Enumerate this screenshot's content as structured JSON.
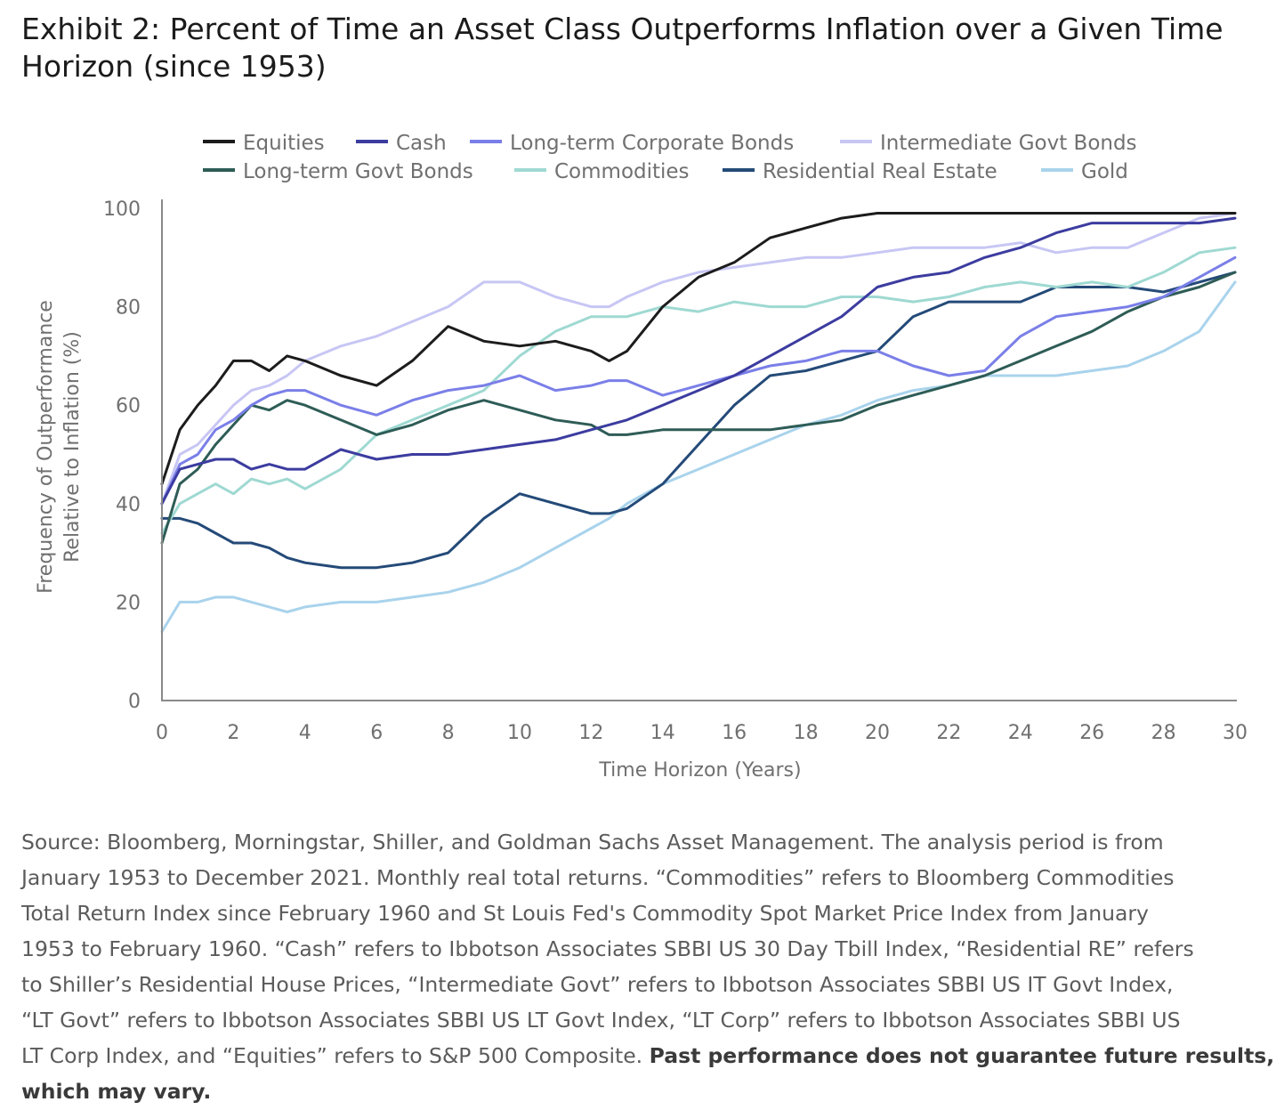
{
  "title": {
    "line1": "Exhibit 2: Percent of Time an Asset Class Outperforms Inflation over a Given Time",
    "line2": "Horizon (since 1953)"
  },
  "chart_data": {
    "type": "line",
    "xlabel": "Time Horizon (Years)",
    "ylabel_line1": "Frequency of Outperformance",
    "ylabel_line2": "Relative to Inflation (%)",
    "xlim": [
      0,
      30
    ],
    "ylim": [
      0,
      100
    ],
    "xticks": [
      0,
      2,
      4,
      6,
      8,
      10,
      12,
      14,
      16,
      18,
      20,
      22,
      24,
      26,
      28,
      30
    ],
    "yticks": [
      0,
      20,
      40,
      60,
      80,
      100
    ],
    "grid": false,
    "legend": "top",
    "x": [
      0,
      0.5,
      1,
      1.5,
      2,
      2.5,
      3,
      3.5,
      4,
      5,
      6,
      7,
      8,
      9,
      10,
      11,
      12,
      12.5,
      13,
      14,
      15,
      16,
      17,
      18,
      19,
      20,
      21,
      22,
      23,
      24,
      25,
      26,
      27,
      28,
      29,
      30
    ],
    "series": [
      {
        "name": "Equities",
        "color": "#1c1c1c",
        "values": [
          44,
          55,
          60,
          64,
          69,
          69,
          67,
          70,
          69,
          66,
          64,
          69,
          76,
          73,
          72,
          73,
          71,
          69,
          71,
          80,
          86,
          89,
          94,
          96,
          98,
          99,
          99,
          99,
          99,
          99,
          99,
          99,
          99,
          99,
          99,
          99
        ]
      },
      {
        "name": "Cash",
        "color": "#3c3ca0",
        "values": [
          40,
          47,
          48,
          49,
          49,
          47,
          48,
          47,
          47,
          51,
          49,
          50,
          50,
          51,
          52,
          53,
          55,
          56,
          57,
          60,
          63,
          66,
          70,
          74,
          78,
          84,
          86,
          87,
          90,
          92,
          95,
          97,
          97,
          97,
          97,
          98
        ]
      },
      {
        "name": "Long-term Corporate Bonds",
        "color": "#7a7fe8",
        "values": [
          40,
          48,
          50,
          55,
          57,
          60,
          62,
          63,
          63,
          60,
          58,
          61,
          63,
          64,
          66,
          63,
          64,
          65,
          65,
          62,
          64,
          66,
          68,
          69,
          71,
          71,
          68,
          66,
          67,
          74,
          78,
          79,
          80,
          82,
          86,
          90
        ]
      },
      {
        "name": "Intermediate Govt Bonds",
        "color": "#c7c6f4",
        "values": [
          40,
          50,
          52,
          56,
          60,
          63,
          64,
          66,
          69,
          72,
          74,
          77,
          80,
          85,
          85,
          82,
          80,
          80,
          82,
          85,
          87,
          88,
          89,
          90,
          90,
          91,
          92,
          92,
          92,
          93,
          91,
          92,
          92,
          95,
          98,
          99
        ]
      },
      {
        "name": "Long-term Govt Bonds",
        "color": "#2e5c56",
        "values": [
          32,
          44,
          47,
          52,
          56,
          60,
          59,
          61,
          60,
          57,
          54,
          56,
          59,
          61,
          59,
          57,
          56,
          54,
          54,
          55,
          55,
          55,
          55,
          56,
          57,
          60,
          62,
          64,
          66,
          69,
          72,
          75,
          79,
          82,
          84,
          87
        ]
      },
      {
        "name": "Commodities",
        "color": "#9fd9d2",
        "values": [
          34,
          40,
          42,
          44,
          42,
          45,
          44,
          45,
          43,
          47,
          54,
          57,
          60,
          63,
          70,
          75,
          78,
          78,
          78,
          80,
          79,
          81,
          80,
          80,
          82,
          82,
          81,
          82,
          84,
          85,
          84,
          85,
          84,
          87,
          91,
          92
        ]
      },
      {
        "name": "Residential Real Estate",
        "color": "#244a78",
        "values": [
          37,
          37,
          36,
          34,
          32,
          32,
          31,
          29,
          28,
          27,
          27,
          28,
          30,
          37,
          42,
          40,
          38,
          38,
          39,
          44,
          52,
          60,
          66,
          67,
          69,
          71,
          78,
          81,
          81,
          81,
          84,
          84,
          84,
          83,
          85,
          87
        ]
      },
      {
        "name": "Gold",
        "color": "#a9d3ec",
        "values": [
          14,
          20,
          20,
          21,
          21,
          20,
          19,
          18,
          19,
          20,
          20,
          21,
          22,
          24,
          27,
          31,
          35,
          37,
          40,
          44,
          47,
          50,
          53,
          56,
          58,
          61,
          63,
          64,
          66,
          66,
          66,
          67,
          68,
          71,
          75,
          85
        ]
      }
    ]
  },
  "source": {
    "line1": "Source: Bloomberg, Morningstar, Shiller, and Goldman Sachs Asset Management. The analysis period is from",
    "line2": "January 1953 to December 2021. Monthly real total returns. “Commodities” refers to Bloomberg Commodities",
    "line3": "Total Return Index since February 1960 and St Louis Fed's Commodity Spot Market Price Index from January",
    "line4": "1953 to February 1960. “Cash” refers to Ibbotson Associates SBBI US 30 Day Tbill Index, “Residential RE” refers",
    "line5": "to Shiller’s Residential House Prices, “Intermediate Govt” refers to Ibbotson Associates SBBI US IT Govt Index,",
    "line6": "“LT Govt” refers to Ibbotson Associates SBBI US LT Govt Index, “LT Corp” refers to Ibbotson Associates SBBI US",
    "line7_text": "LT Corp Index, and “Equities” refers to S&P 500 Composite. ",
    "line7_bold": "Past performance does not guarantee future results,",
    "line8_bold": "which may vary."
  }
}
